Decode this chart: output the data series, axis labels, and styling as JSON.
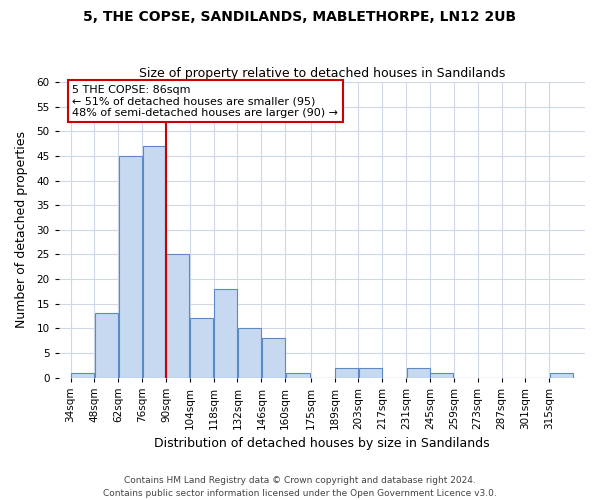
{
  "title": "5, THE COPSE, SANDILANDS, MABLETHORPE, LN12 2UB",
  "subtitle": "Size of property relative to detached houses in Sandilands",
  "xlabel": "Distribution of detached houses by size in Sandilands",
  "ylabel": "Number of detached properties",
  "bin_labels": [
    "34sqm",
    "48sqm",
    "62sqm",
    "76sqm",
    "90sqm",
    "104sqm",
    "118sqm",
    "132sqm",
    "146sqm",
    "160sqm",
    "175sqm",
    "189sqm",
    "203sqm",
    "217sqm",
    "231sqm",
    "245sqm",
    "259sqm",
    "273sqm",
    "287sqm",
    "301sqm",
    "315sqm"
  ],
  "bar_heights": [
    1,
    13,
    45,
    47,
    25,
    12,
    18,
    10,
    8,
    1,
    0,
    2,
    2,
    0,
    2,
    1,
    0,
    0,
    0,
    0,
    1
  ],
  "bar_color": "#c6d9f0",
  "bar_edge_color": "#5b8ac5",
  "reference_line_color": "#cc0000",
  "annotation_box_edge_color": "#cc0000",
  "annotation_box_face_color": "#ffffff",
  "annotation_line1": "5 THE COPSE: 86sqm",
  "annotation_line2": "← 51% of detached houses are smaller (95)",
  "annotation_line3": "48% of semi-detached houses are larger (90) →",
  "ylim": [
    0,
    60
  ],
  "yticks": [
    0,
    5,
    10,
    15,
    20,
    25,
    30,
    35,
    40,
    45,
    50,
    55,
    60
  ],
  "footer_line1": "Contains HM Land Registry data © Crown copyright and database right 2024.",
  "footer_line2": "Contains public sector information licensed under the Open Government Licence v3.0.",
  "background_color": "#ffffff",
  "grid_color": "#d0d8e8",
  "title_fontsize": 10,
  "subtitle_fontsize": 9,
  "axis_label_fontsize": 9,
  "tick_fontsize": 7.5,
  "annotation_fontsize": 8,
  "footer_fontsize": 6.5
}
